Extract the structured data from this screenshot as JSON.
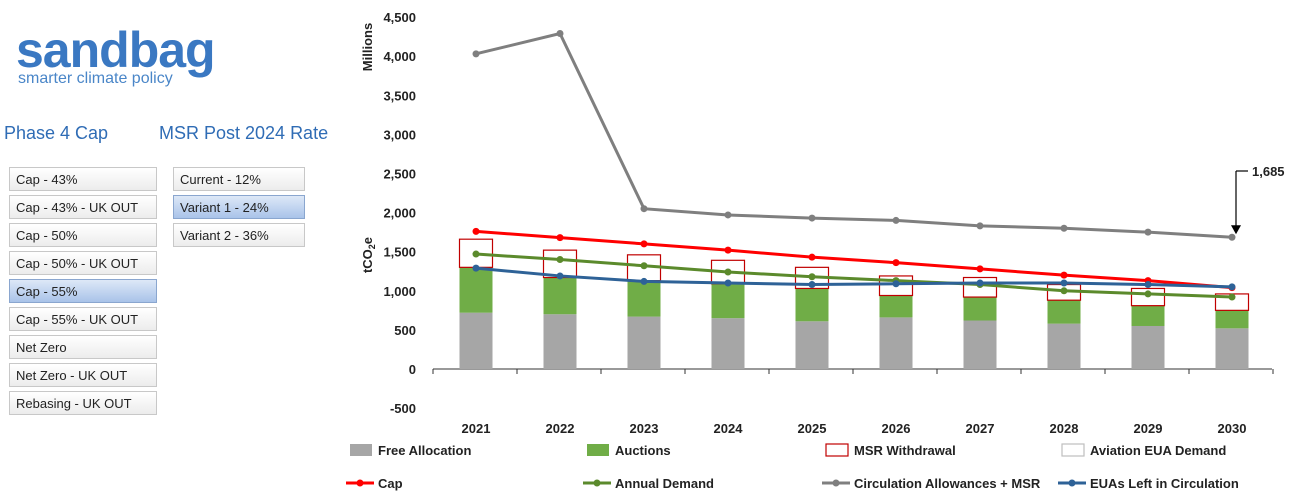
{
  "logo": {
    "word": "sandbag",
    "tagline": "smarter climate policy"
  },
  "phase4": {
    "heading": "Phase 4 Cap",
    "options": [
      "Cap - 43%",
      "Cap - 43% - UK OUT",
      "Cap - 50%",
      "Cap - 50% - UK OUT",
      "Cap - 55%",
      "Cap - 55% - UK OUT",
      "Net Zero",
      "Net Zero - UK OUT",
      "Rebasing - UK OUT"
    ],
    "selected": "Cap - 55%"
  },
  "msr": {
    "heading": "MSR Post 2024 Rate",
    "options": [
      "Current - 12%",
      "Variant 1 - 24%",
      "Variant 2 - 36%"
    ],
    "selected": "Variant 1 - 24%"
  },
  "chart_data": {
    "type": "bar",
    "units_label": "Millions",
    "ylabel": "tCO₂e",
    "ylim": [
      -500,
      4500
    ],
    "yticks": [
      -500,
      0,
      500,
      1000,
      1500,
      2000,
      2500,
      3000,
      3500,
      4000,
      4500
    ],
    "ytick_labels": [
      "-500",
      "0",
      "500",
      "1,000",
      "1,500",
      "2,000",
      "2,500",
      "3,000",
      "3,500",
      "4,000",
      "4,500"
    ],
    "categories": [
      "2021",
      "2022",
      "2023",
      "2024",
      "2025",
      "2026",
      "2027",
      "2028",
      "2029",
      "2030"
    ],
    "bars": [
      {
        "name": "Free Allocation",
        "color": "#a6a6a6",
        "values": [
          720,
          700,
          670,
          650,
          610,
          660,
          620,
          580,
          550,
          520
        ]
      },
      {
        "name": "Auctions",
        "color": "#70ad47",
        "values": [
          580,
          470,
          460,
          440,
          420,
          280,
          300,
          300,
          260,
          230
        ]
      },
      {
        "name": "MSR Withdrawal",
        "color": "#ffffff",
        "stroke": "#c00000",
        "values": [
          360,
          350,
          330,
          300,
          270,
          250,
          250,
          200,
          220,
          210
        ]
      },
      {
        "name": "Aviation EUA Demand",
        "color": "#ffffff",
        "stroke": "#bfbfbf",
        "values": [
          0,
          0,
          0,
          0,
          0,
          0,
          0,
          0,
          0,
          0
        ]
      }
    ],
    "lines": [
      {
        "name": "Cap",
        "color": "#ff0000",
        "values": [
          1760,
          1680,
          1600,
          1520,
          1430,
          1360,
          1280,
          1200,
          1130,
          1040
        ]
      },
      {
        "name": "Annual Demand",
        "color": "#5b8a2c",
        "values": [
          1470,
          1400,
          1320,
          1240,
          1180,
          1130,
          1080,
          1000,
          960,
          920
        ]
      },
      {
        "name": "Circulation Allowances + MSR",
        "color": "#7f7f7f",
        "values": [
          4030,
          4290,
          2050,
          1970,
          1930,
          1900,
          1830,
          1800,
          1750,
          1685
        ]
      },
      {
        "name": "EUAs Left in Circulation",
        "color": "#2e6297",
        "values": [
          1290,
          1190,
          1120,
          1100,
          1080,
          1090,
          1100,
          1100,
          1080,
          1050
        ]
      }
    ],
    "annotation": {
      "text": "1,685",
      "category": "2030",
      "value": 1685
    },
    "legend_position": "bottom",
    "grid": false
  }
}
